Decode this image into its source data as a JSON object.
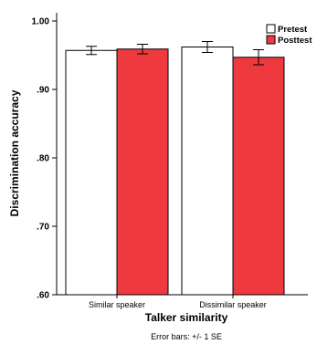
{
  "chart_data": {
    "type": "bar",
    "categories": [
      "Similar speaker",
      "Dissimilar speaker"
    ],
    "series": [
      {
        "name": "Pretest",
        "values": [
          0.957,
          0.962
        ],
        "error": [
          0.006,
          0.008
        ],
        "color": "#ffffff"
      },
      {
        "name": "Posttest",
        "values": [
          0.959,
          0.947
        ],
        "error": [
          0.007,
          0.011
        ],
        "color": "#ee3a3f"
      }
    ],
    "xlabel": "Talker similarity",
    "ylabel": "Discrimination accuracy",
    "ylim": [
      0.6,
      1.0
    ],
    "yticks": [
      0.6,
      0.7,
      0.8,
      0.9,
      1.0
    ],
    "ytick_labels": [
      ".60",
      ".70",
      ".80",
      ".90",
      "1.00"
    ],
    "grid": false,
    "legend": "top-right",
    "note": "Error bars: +/- 1 SE"
  }
}
